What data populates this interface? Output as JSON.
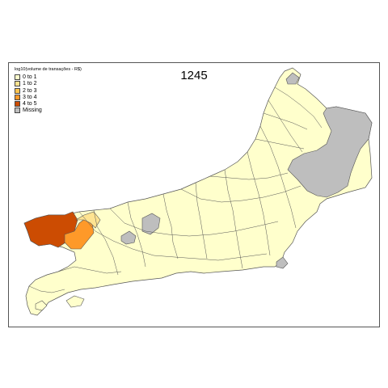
{
  "map": {
    "title": "1245",
    "legend": {
      "title": "log10(volume de transações - R$)",
      "items": [
        {
          "label": "0 to 1",
          "color": "#ffffcc"
        },
        {
          "label": "1 to 2",
          "color": "#fee391"
        },
        {
          "label": "2 to 3",
          "color": "#fec44f"
        },
        {
          "label": "3 to 4",
          "color": "#fe9929"
        },
        {
          "label": "4 to 5",
          "color": "#cc4c02"
        },
        {
          "label": "Missing",
          "color": "#bebebe"
        }
      ]
    },
    "region_classes": {
      "base": "0 to 1",
      "west_large": "4 to 5",
      "west_medium": "3 to 4",
      "west_small": "1 to 2",
      "northeast": "Missing",
      "central_north": "Missing",
      "central_south": "Missing",
      "east_small": "Missing",
      "north_tip": "Missing"
    }
  }
}
